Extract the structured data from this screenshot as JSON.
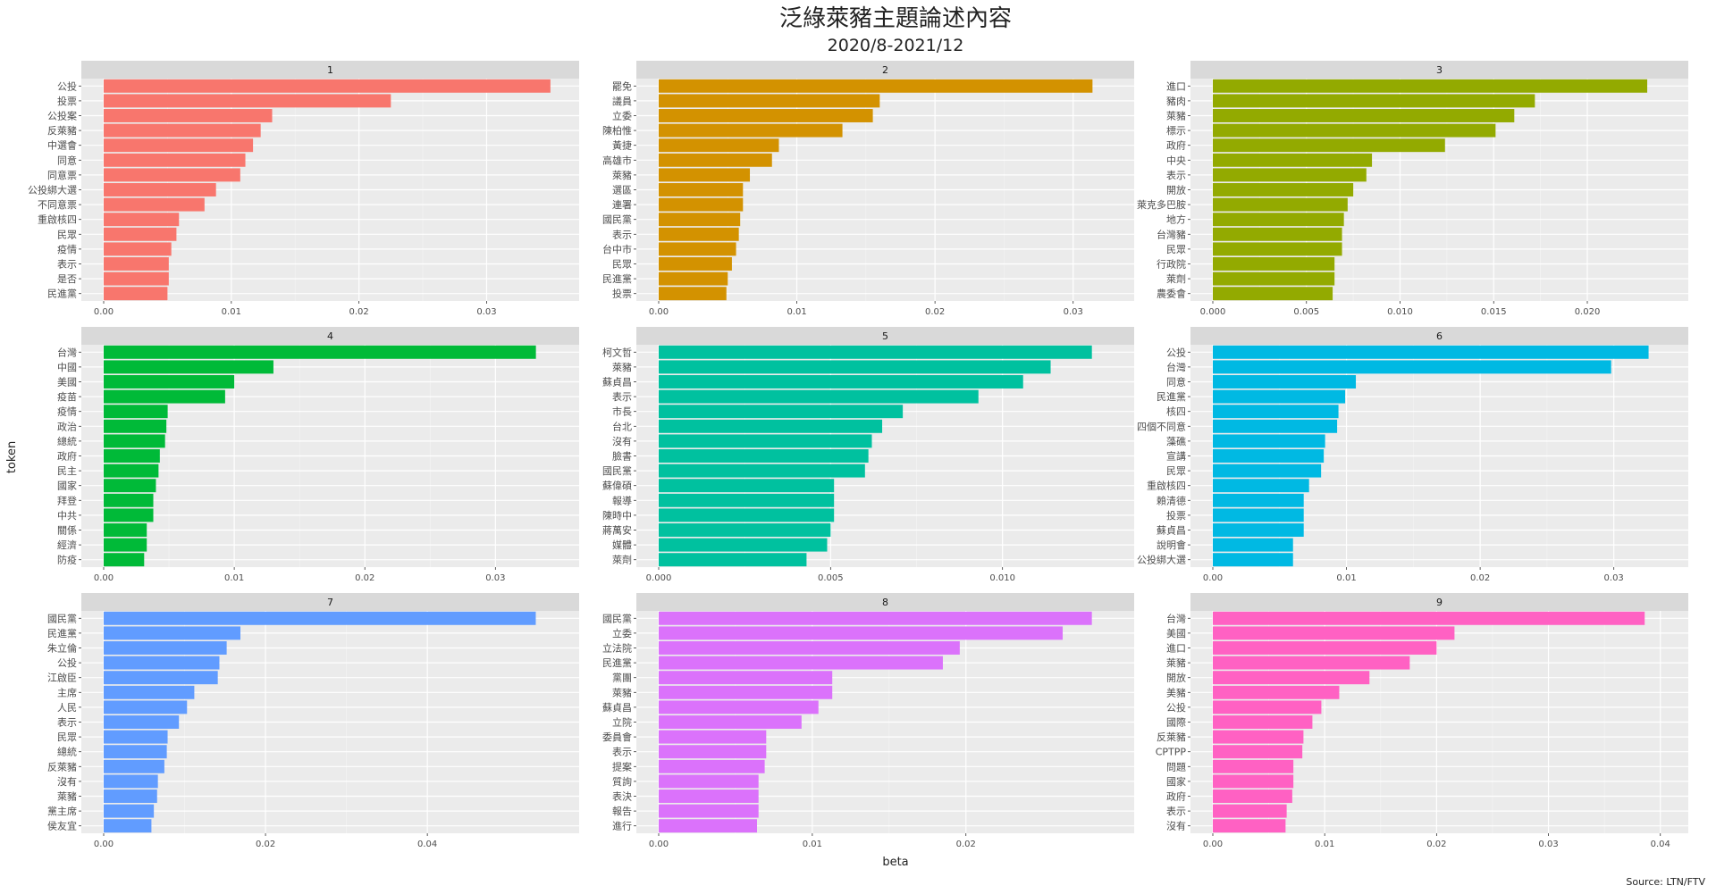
{
  "title": "泛綠萊豬主題論述內容",
  "subtitle": "2020/8-2021/12",
  "source": "Source: LTN/FTV",
  "chart_data": {
    "type": "bar",
    "orientation": "horizontal",
    "xlabel": "beta",
    "ylabel": "token",
    "facets": [
      {
        "label": "1",
        "color": "#F8766D",
        "xlim": [
          0,
          0.0355
        ],
        "ticks": [
          0.0,
          0.01,
          0.02,
          0.03
        ],
        "tick_labels": [
          "0.00",
          "0.01",
          "0.02",
          "0.03"
        ],
        "categories": [
          "公投",
          "投票",
          "公投案",
          "反萊豬",
          "中選會",
          "同意",
          "同意票",
          "公投綁大選",
          "不同意票",
          "重啟核四",
          "民眾",
          "疫情",
          "表示",
          "是否",
          "民進黨"
        ],
        "values": [
          0.035,
          0.0225,
          0.0132,
          0.0123,
          0.0117,
          0.0111,
          0.0107,
          0.0088,
          0.0079,
          0.0059,
          0.0057,
          0.0053,
          0.0051,
          0.0051,
          0.005
        ]
      },
      {
        "label": "2",
        "color": "#D39200",
        "xlim": [
          0,
          0.0328
        ],
        "ticks": [
          0.0,
          0.01,
          0.02,
          0.03
        ],
        "tick_labels": [
          "0.00",
          "0.01",
          "0.02",
          "0.03"
        ],
        "categories": [
          "罷免",
          "議員",
          "立委",
          "陳柏惟",
          "黃捷",
          "高雄市",
          "萊豬",
          "選區",
          "連署",
          "國民黨",
          "表示",
          "台中市",
          "民眾",
          "民進黨",
          "投票"
        ],
        "values": [
          0.0314,
          0.016,
          0.0155,
          0.0133,
          0.0087,
          0.0082,
          0.0066,
          0.0061,
          0.0061,
          0.0059,
          0.0058,
          0.0056,
          0.0053,
          0.005,
          0.0049
        ]
      },
      {
        "label": "3",
        "color": "#93AA00",
        "xlim": [
          0,
          0.0242
        ],
        "ticks": [
          0.0,
          0.005,
          0.01,
          0.015,
          0.02
        ],
        "tick_labels": [
          "0.000",
          "0.005",
          "0.010",
          "0.015",
          "0.020"
        ],
        "categories": [
          "進口",
          "豬肉",
          "萊豬",
          "標示",
          "政府",
          "中央",
          "表示",
          "開放",
          "萊克多巴胺",
          "地方",
          "台灣豬",
          "民眾",
          "行政院",
          "萊劑",
          "農委會"
        ],
        "values": [
          0.0232,
          0.0172,
          0.0161,
          0.0151,
          0.0124,
          0.0085,
          0.0082,
          0.0075,
          0.0072,
          0.007,
          0.0069,
          0.0069,
          0.0065,
          0.0065,
          0.0064
        ]
      },
      {
        "label": "4",
        "color": "#00BA38",
        "xlim": [
          0,
          0.0347
        ],
        "ticks": [
          0.0,
          0.01,
          0.02,
          0.03
        ],
        "tick_labels": [
          "0.00",
          "0.01",
          "0.02",
          "0.03"
        ],
        "categories": [
          "台灣",
          "中國",
          "美國",
          "疫苗",
          "疫情",
          "政治",
          "總統",
          "政府",
          "民主",
          "國家",
          "拜登",
          "中共",
          "關係",
          "經濟",
          "防疫"
        ],
        "values": [
          0.0331,
          0.013,
          0.01,
          0.0093,
          0.0049,
          0.0048,
          0.0047,
          0.0043,
          0.0042,
          0.004,
          0.0038,
          0.0038,
          0.0033,
          0.0033,
          0.0031
        ]
      },
      {
        "label": "5",
        "color": "#00C19F",
        "xlim": [
          0,
          0.01318
        ],
        "ticks": [
          0.0,
          0.005,
          0.01
        ],
        "tick_labels": [
          "0.000",
          "0.005",
          "0.010"
        ],
        "categories": [
          "柯文哲",
          "萊豬",
          "蘇貞昌",
          "表示",
          "市長",
          "台北",
          "沒有",
          "臉書",
          "國民黨",
          "蘇偉碩",
          "報導",
          "陳時中",
          "蔣萬安",
          "媒體",
          "萊劑"
        ],
        "values": [
          0.0126,
          0.0114,
          0.0106,
          0.0093,
          0.0071,
          0.0065,
          0.0062,
          0.0061,
          0.006,
          0.0051,
          0.0051,
          0.0051,
          0.005,
          0.0049,
          0.0043
        ]
      },
      {
        "label": "6",
        "color": "#00B9E3",
        "xlim": [
          0,
          0.0339
        ],
        "ticks": [
          0.0,
          0.01,
          0.02,
          0.03
        ],
        "tick_labels": [
          "0.00",
          "0.01",
          "0.02",
          "0.03"
        ],
        "categories": [
          "公投",
          "台灣",
          "同意",
          "民進黨",
          "核四",
          "四個不同意",
          "藻礁",
          "宣講",
          "民眾",
          "重啟核四",
          "賴清德",
          "投票",
          "蘇貞昌",
          "說明會",
          "公投綁大選"
        ],
        "values": [
          0.0326,
          0.0298,
          0.0107,
          0.0099,
          0.0094,
          0.0093,
          0.0084,
          0.0083,
          0.0081,
          0.0072,
          0.0068,
          0.0068,
          0.0068,
          0.006,
          0.006
        ]
      },
      {
        "label": "7",
        "color": "#619CFF",
        "xlim": [
          0,
          0.056
        ],
        "ticks": [
          0.0,
          0.02,
          0.04
        ],
        "tick_labels": [
          "0.00",
          "0.02",
          "0.04"
        ],
        "categories": [
          "國民黨",
          "民進黨",
          "朱立倫",
          "公投",
          "江啟臣",
          "主席",
          "人民",
          "表示",
          "民眾",
          "總統",
          "反萊豬",
          "沒有",
          "萊豬",
          "黨主席",
          "侯友宜"
        ],
        "values": [
          0.0534,
          0.0169,
          0.0152,
          0.0143,
          0.0141,
          0.0112,
          0.0103,
          0.0093,
          0.0079,
          0.0078,
          0.0075,
          0.0067,
          0.0066,
          0.0062,
          0.0059
        ]
      },
      {
        "label": "8",
        "color": "#DB72FB",
        "xlim": [
          0,
          0.0295
        ],
        "ticks": [
          0.0,
          0.01,
          0.02
        ],
        "tick_labels": [
          "0.00",
          "0.01",
          "0.02"
        ],
        "categories": [
          "國民黨",
          "立委",
          "立法院",
          "民進黨",
          "黨團",
          "萊豬",
          "蘇貞昌",
          "立院",
          "委員會",
          "表示",
          "提案",
          "質詢",
          "表決",
          "報告",
          "進行"
        ],
        "values": [
          0.0282,
          0.0263,
          0.0196,
          0.0185,
          0.0113,
          0.0113,
          0.0104,
          0.0093,
          0.007,
          0.007,
          0.0069,
          0.0065,
          0.0065,
          0.0065,
          0.0064
        ]
      },
      {
        "label": "9",
        "color": "#FF61C3",
        "xlim": [
          0,
          0.0405
        ],
        "ticks": [
          0.0,
          0.01,
          0.02,
          0.03,
          0.04
        ],
        "tick_labels": [
          "0.00",
          "0.01",
          "0.02",
          "0.03",
          "0.04"
        ],
        "categories": [
          "台灣",
          "美國",
          "進口",
          "萊豬",
          "開放",
          "美豬",
          "公投",
          "國際",
          "反萊豬",
          "CPTPP",
          "問題",
          "國家",
          "政府",
          "表示",
          "沒有"
        ],
        "values": [
          0.0386,
          0.0216,
          0.02,
          0.0176,
          0.014,
          0.0113,
          0.0097,
          0.0089,
          0.0081,
          0.008,
          0.0072,
          0.0072,
          0.0071,
          0.0066,
          0.0065
        ]
      }
    ]
  }
}
